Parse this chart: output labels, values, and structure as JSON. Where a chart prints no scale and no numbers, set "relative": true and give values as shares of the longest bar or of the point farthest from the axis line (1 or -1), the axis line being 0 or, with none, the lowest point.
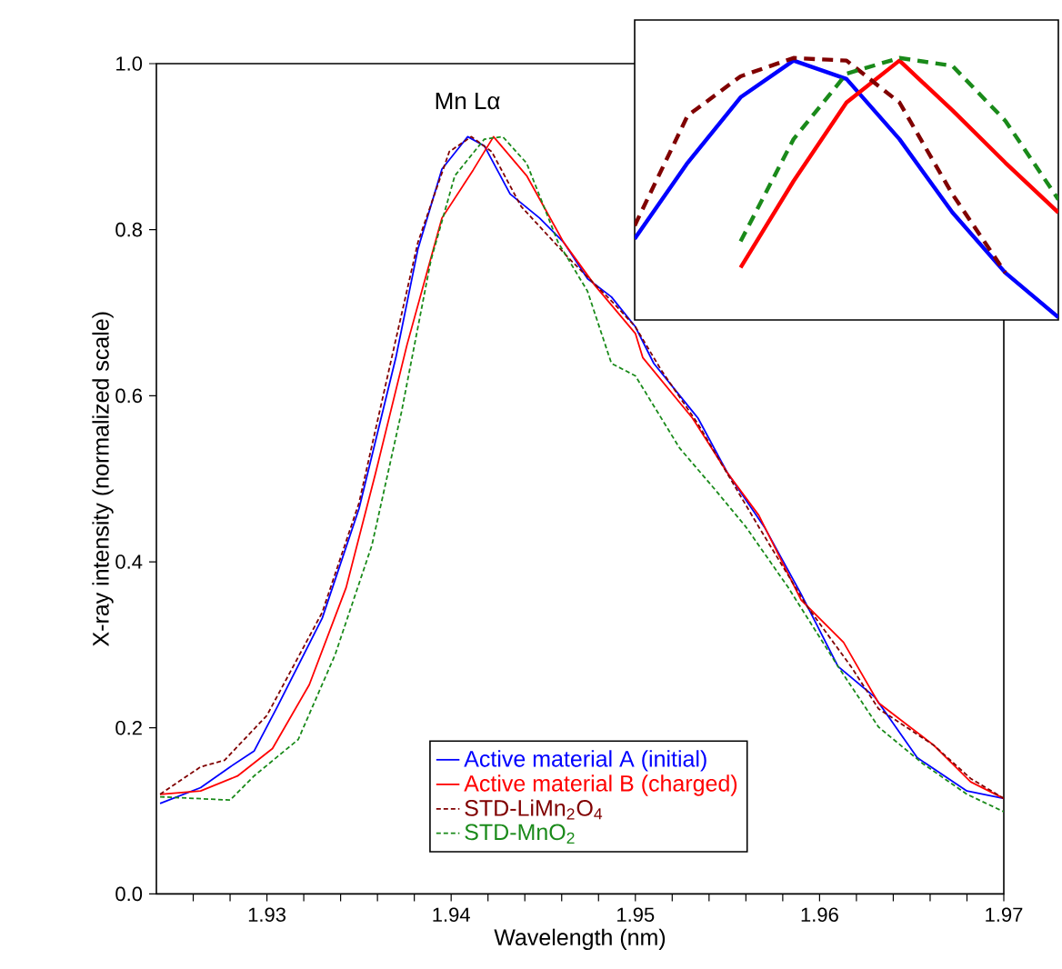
{
  "chart_data": [
    {
      "type": "line",
      "xlabel": "Wavelength (nm)",
      "ylabel": "X-ray intensity (normalized scale)",
      "xlim": [
        1.924,
        1.97
      ],
      "ylim": [
        0,
        1
      ],
      "xticks": [
        {
          "value": 1.926,
          "label": null
        },
        {
          "value": 1.928,
          "label": null
        },
        1.93,
        {
          "value": 1.932,
          "label": null
        },
        {
          "value": 1.934,
          "label": null
        },
        {
          "value": 1.936,
          "label": null
        },
        {
          "value": 1.938,
          "label": null
        },
        1.94,
        {
          "value": 1.942,
          "label": null
        },
        {
          "value": 1.944,
          "label": null
        },
        {
          "value": 1.946,
          "label": null
        },
        {
          "value": 1.948,
          "label": null
        },
        1.95,
        {
          "value": 1.952,
          "label": null
        },
        {
          "value": 1.954,
          "label": null
        },
        {
          "value": 1.956,
          "label": null
        },
        {
          "value": 1.958,
          "label": null
        },
        1.96,
        {
          "value": 1.962,
          "label": null
        },
        {
          "value": 1.964,
          "label": null
        },
        {
          "value": 1.966,
          "label": null
        },
        {
          "value": 1.968,
          "label": null
        },
        1.97
      ],
      "yticks": [
        {
          "value": 0,
          "label": "0.0"
        },
        0.2,
        0.4,
        0.6,
        0.8,
        {
          "value": 1,
          "label": "1.0"
        }
      ],
      "legend": "bottom",
      "grid": false,
      "annotations": [
        "Mn Lα"
      ],
      "series": [
        {
          "name": "Active material A (initial)",
          "color": "#0000ff",
          "line_style": "solid",
          "x": [
            1.9242,
            1.9264,
            1.928,
            1.9293,
            1.9306,
            1.933,
            1.935,
            1.937,
            1.9382,
            1.9395,
            1.9409,
            1.9418,
            1.9432,
            1.9448,
            1.9461,
            1.9474,
            1.9487,
            1.95,
            1.951,
            1.9534,
            1.955,
            1.957,
            1.959,
            1.961,
            1.963,
            1.9653,
            1.968,
            1.97
          ],
          "values": [
            0.109,
            0.128,
            0.153,
            0.172,
            0.227,
            0.332,
            0.464,
            0.646,
            0.777,
            0.873,
            0.912,
            0.901,
            0.843,
            0.814,
            0.785,
            0.741,
            0.719,
            0.683,
            0.639,
            0.573,
            0.507,
            0.442,
            0.361,
            0.274,
            0.237,
            0.164,
            0.124,
            0.115
          ]
        },
        {
          "name": "Active material B (charged)",
          "color": "#ff0000",
          "line_style": "solid",
          "x": [
            1.9242,
            1.9264,
            1.9284,
            1.9303,
            1.9323,
            1.9343,
            1.9359,
            1.9376,
            1.9395,
            1.9412,
            1.9423,
            1.9441,
            1.9461,
            1.9478,
            1.95,
            1.9504,
            1.9531,
            1.955,
            1.9567,
            1.959,
            1.9613,
            1.9632,
            1.9645,
            1.9662,
            1.9682,
            1.97
          ],
          "values": [
            0.12,
            0.124,
            0.142,
            0.175,
            0.252,
            0.369,
            0.507,
            0.661,
            0.814,
            0.872,
            0.912,
            0.865,
            0.785,
            0.733,
            0.675,
            0.646,
            0.573,
            0.507,
            0.456,
            0.354,
            0.303,
            0.23,
            0.208,
            0.179,
            0.135,
            0.115
          ]
        },
        {
          "name": "STD-LiMn$_{2}$O$_{4}$",
          "color": "#800000",
          "line_style": "dashed",
          "x": [
            1.9242,
            1.9264,
            1.9277,
            1.93,
            1.933,
            1.935,
            1.937,
            1.9382,
            1.9399,
            1.9411,
            1.9422,
            1.9438,
            1.9465,
            1.9488,
            1.95,
            1.9514,
            1.9534,
            1.9567,
            1.9593,
            1.9617,
            1.9632,
            1.9662,
            1.9682,
            1.97
          ],
          "values": [
            0.12,
            0.153,
            0.161,
            0.215,
            0.339,
            0.471,
            0.668,
            0.785,
            0.894,
            0.912,
            0.894,
            0.828,
            0.763,
            0.712,
            0.683,
            0.631,
            0.566,
            0.442,
            0.347,
            0.274,
            0.223,
            0.179,
            0.139,
            0.115
          ]
        },
        {
          "name": "STD-MnO$_{2}$",
          "color": "#1a8a1a",
          "line_style": "dashed",
          "x": [
            1.9242,
            1.928,
            1.9293,
            1.9317,
            1.9337,
            1.9357,
            1.9373,
            1.9389,
            1.9402,
            1.9418,
            1.9428,
            1.9441,
            1.9458,
            1.9474,
            1.9487,
            1.95,
            1.9524,
            1.9544,
            1.956,
            1.9583,
            1.961,
            1.9632,
            1.9656,
            1.968,
            1.97
          ],
          "values": [
            0.117,
            0.113,
            0.142,
            0.186,
            0.288,
            0.42,
            0.58,
            0.763,
            0.865,
            0.909,
            0.912,
            0.88,
            0.785,
            0.726,
            0.639,
            0.624,
            0.537,
            0.485,
            0.442,
            0.369,
            0.274,
            0.201,
            0.157,
            0.12,
            0.099
          ]
        }
      ]
    },
    {
      "type": "line",
      "relative": true,
      "tick_labels": false,
      "categories": [
        null,
        null,
        null,
        null,
        null,
        null,
        null,
        null,
        null
      ],
      "series": [
        {
          "color": "#0000ff",
          "line_style": "solid",
          "values": [
            0.31,
            0.6,
            0.85,
            0.99,
            0.92,
            0.69,
            0.41,
            0.18,
            0.01
          ]
        },
        {
          "color": "#ff0000",
          "line_style": "solid",
          "values": [
            null,
            null,
            0.2,
            0.53,
            0.83,
            0.99,
            0.8,
            0.6,
            0.41
          ]
        },
        {
          "color": "#800000",
          "line_style": "dashed",
          "values": [
            0.36,
            0.78,
            0.93,
            1.0,
            0.99,
            0.83,
            0.48,
            0.18,
            null
          ]
        },
        {
          "color": "#1a8a1a",
          "line_style": "dashed",
          "values": [
            null,
            null,
            0.3,
            0.69,
            0.94,
            1.0,
            0.97,
            0.76,
            0.46
          ]
        }
      ]
    }
  ]
}
